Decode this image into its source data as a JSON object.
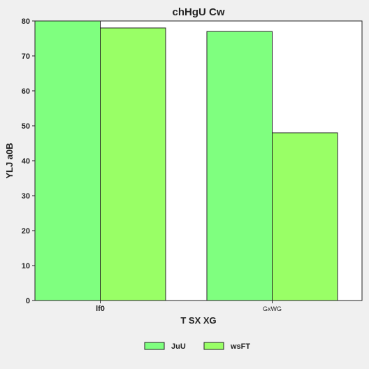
{
  "chart_data": {
    "type": "bar",
    "title": "chHgU Cw",
    "xlabel": "T SX XG",
    "ylabel": "YLJ a0B",
    "categories": [
      "lf0",
      "GxWG"
    ],
    "series": [
      {
        "name": "JuU",
        "values": [
          80,
          77
        ],
        "color": "#7fff7f"
      },
      {
        "name": "wsFT",
        "values": [
          78,
          48
        ],
        "color": "#99ff66"
      }
    ],
    "ylim": [
      0,
      80
    ],
    "yticks": [
      0,
      10,
      20,
      30,
      40,
      50,
      60,
      70,
      80
    ],
    "grid": false,
    "legend_position": "bottom"
  }
}
